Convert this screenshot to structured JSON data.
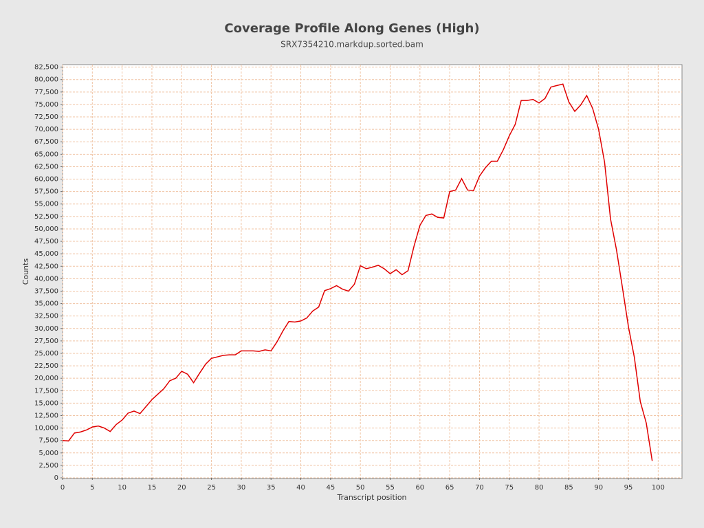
{
  "chart_data": {
    "type": "line",
    "title": "Coverage Profile Along Genes (High)",
    "subtitle": "SRX7354210.markdup.sorted.bam",
    "x_label": "Transcript position",
    "y_label": "Counts",
    "x": [
      0,
      1,
      2,
      3,
      4,
      5,
      6,
      7,
      8,
      9,
      10,
      11,
      12,
      13,
      14,
      15,
      16,
      17,
      18,
      19,
      20,
      21,
      22,
      23,
      24,
      25,
      26,
      27,
      28,
      29,
      30,
      31,
      32,
      33,
      34,
      35,
      36,
      37,
      38,
      39,
      40,
      41,
      42,
      43,
      44,
      45,
      46,
      47,
      48,
      49,
      50,
      51,
      52,
      53,
      54,
      55,
      56,
      57,
      58,
      59,
      60,
      61,
      62,
      63,
      64,
      65,
      66,
      67,
      68,
      69,
      70,
      71,
      72,
      73,
      74,
      75,
      76,
      77,
      78,
      79,
      80,
      81,
      82,
      83,
      84,
      85,
      86,
      87,
      88,
      89,
      90,
      91,
      92,
      93,
      94,
      95,
      96,
      97,
      98,
      99
    ],
    "series": [
      {
        "name": "Counts",
        "color": "#e00000",
        "values": [
          7500,
          7400,
          9000,
          9200,
          9600,
          10200,
          10400,
          10000,
          9300,
          10700,
          11600,
          13000,
          13400,
          12900,
          14300,
          15700,
          16800,
          17900,
          19500,
          20000,
          21400,
          20800,
          19100,
          21000,
          22800,
          24000,
          24300,
          24600,
          24700,
          24700,
          25500,
          25500,
          25500,
          25400,
          25700,
          25500,
          27300,
          29500,
          31400,
          31300,
          31500,
          32100,
          33500,
          34300,
          37600,
          38000,
          38600,
          37900,
          37500,
          38900,
          42600,
          42000,
          42300,
          42700,
          42000,
          41000,
          41800,
          40800,
          41600,
          46500,
          50700,
          52700,
          53000,
          52300,
          52200,
          57500,
          57800,
          60100,
          57800,
          57700,
          60600,
          62300,
          63600,
          63600,
          65900,
          68700,
          71000,
          75800,
          75800,
          76000,
          75300,
          76200,
          78500,
          78800,
          79100,
          75500,
          73600,
          74900,
          76800,
          74200,
          70000,
          63400,
          52000,
          45800,
          38200,
          30400,
          24200,
          15300,
          11000,
          3400
        ]
      }
    ],
    "xlim": [
      0,
      104
    ],
    "ylim": [
      0,
      83000
    ],
    "xticks": [
      0,
      5,
      10,
      15,
      20,
      25,
      30,
      35,
      40,
      45,
      50,
      55,
      60,
      65,
      70,
      75,
      80,
      85,
      90,
      95,
      100
    ],
    "yticks": [
      0,
      {
        "value": 2500,
        "label": "2,500"
      },
      {
        "value": 5000,
        "label": "5,000"
      },
      {
        "value": 7500,
        "label": "7,500"
      },
      {
        "value": 10000,
        "label": "10,000"
      },
      {
        "value": 12500,
        "label": "12,500"
      },
      {
        "value": 15000,
        "label": "15,000"
      },
      {
        "value": 17500,
        "label": "17,500"
      },
      {
        "value": 20000,
        "label": "20,000"
      },
      {
        "value": 22500,
        "label": "22,500"
      },
      {
        "value": 25000,
        "label": "25,000"
      },
      {
        "value": 27500,
        "label": "27,500"
      },
      {
        "value": 30000,
        "label": "30,000"
      },
      {
        "value": 32500,
        "label": "32,500"
      },
      {
        "value": 35000,
        "label": "35,000"
      },
      {
        "value": 37500,
        "label": "37,500"
      },
      {
        "value": 40000,
        "label": "40,000"
      },
      {
        "value": 42500,
        "label": "42,500"
      },
      {
        "value": 45000,
        "label": "45,000"
      },
      {
        "value": 47500,
        "label": "47,500"
      },
      {
        "value": 50000,
        "label": "50,000"
      },
      {
        "value": 52500,
        "label": "52,500"
      },
      {
        "value": 55000,
        "label": "55,000"
      },
      {
        "value": 57500,
        "label": "57,500"
      },
      {
        "value": 60000,
        "label": "60,000"
      },
      {
        "value": 62500,
        "label": "62,500"
      },
      {
        "value": 65000,
        "label": "65,000"
      },
      {
        "value": 67500,
        "label": "67,500"
      },
      {
        "value": 70000,
        "label": "70,000"
      },
      {
        "value": 72500,
        "label": "72,500"
      },
      {
        "value": 75000,
        "label": "75,000"
      },
      {
        "value": 77500,
        "label": "77,500"
      },
      {
        "value": 80000,
        "label": "80,000"
      },
      {
        "value": 82500,
        "label": "82,500"
      }
    ],
    "grid": true
  }
}
